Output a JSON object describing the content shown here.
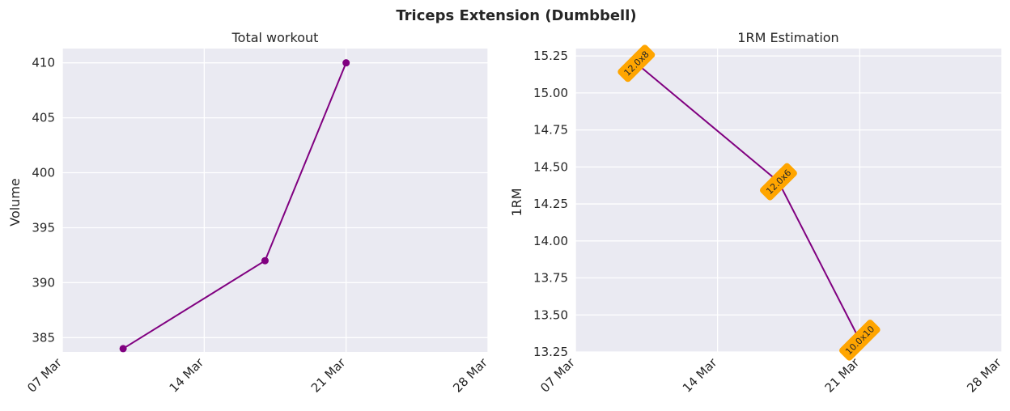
{
  "figure_title": "Triceps Extension (Dumbbell)",
  "colors": {
    "line": "#800080",
    "panel_bg": "#EAEAF2",
    "grid": "#FFFFFF",
    "annotation_bg": "#FFA500"
  },
  "chart_data": [
    {
      "type": "line",
      "title": "Total workout",
      "xlabel": "",
      "ylabel": "Volume",
      "x_tick_labels": [
        "07 Mar",
        "14 Mar",
        "21 Mar",
        "28 Mar"
      ],
      "y_tick_labels": [
        "385",
        "390",
        "395",
        "400",
        "405",
        "410"
      ],
      "xlim": [
        "2024-03-07",
        "2024-03-28"
      ],
      "ylim": [
        383.7,
        411.3
      ],
      "grid": true,
      "markers": true,
      "series": [
        {
          "x": [
            "2024-03-10",
            "2024-03-17",
            "2024-03-21"
          ],
          "y": [
            384,
            392,
            410
          ]
        }
      ]
    },
    {
      "type": "line",
      "title": "1RM Estimation",
      "xlabel": "",
      "ylabel": "1RM",
      "x_tick_labels": [
        "07 Mar",
        "14 Mar",
        "21 Mar",
        "28 Mar"
      ],
      "y_tick_labels": [
        "13.25",
        "13.50",
        "13.75",
        "14.00",
        "14.25",
        "14.50",
        "14.75",
        "15.00",
        "15.25"
      ],
      "xlim": [
        "2024-03-07",
        "2024-03-28"
      ],
      "ylim": [
        13.25,
        15.3
      ],
      "grid": true,
      "markers": false,
      "series": [
        {
          "x": [
            "2024-03-10",
            "2024-03-17",
            "2024-03-21"
          ],
          "y": [
            15.2,
            14.4,
            13.33
          ],
          "labels": [
            "12.0x8",
            "12.0x6",
            "10.0x10"
          ]
        }
      ]
    }
  ]
}
